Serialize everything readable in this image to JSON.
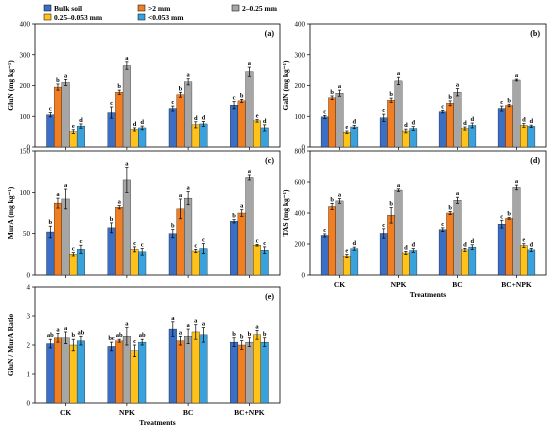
{
  "legend": {
    "items": [
      {
        "label": "Bulk soil",
        "color": "#3a6fc4"
      },
      {
        "label": ">2 mm",
        "color": "#f07f24"
      },
      {
        "label": "2–0.25 mm",
        "color": "#a6a6a6"
      },
      {
        "label": "0.25–0.053 mm",
        "color": "#ffc21a"
      },
      {
        "label": "<0.053 mm",
        "color": "#39a2dd"
      }
    ]
  },
  "chart_data": [
    {
      "panel": "(a)",
      "type": "bar",
      "ylabel": "GluN (mg kg⁻¹)",
      "ylim": [
        0,
        400
      ],
      "yticks": [
        0,
        100,
        200,
        300,
        400
      ],
      "categories": [
        "CK",
        "NPK",
        "BC",
        "BC+NPK"
      ],
      "xlabel": "",
      "series": [
        {
          "name": "Bulk soil",
          "values": [
            105,
            112,
            125,
            136
          ],
          "errors": [
            7,
            18,
            8,
            12
          ],
          "letters": [
            "c",
            "c",
            "c",
            "c"
          ]
        },
        {
          "name": ">2 mm",
          "values": [
            195,
            178,
            170,
            150
          ],
          "errors": [
            10,
            7,
            8,
            5
          ],
          "letters": [
            "b",
            "b",
            "b",
            "b"
          ]
        },
        {
          "name": "2–0.25 mm",
          "values": [
            210,
            265,
            212,
            245
          ],
          "errors": [
            10,
            12,
            10,
            15
          ],
          "letters": [
            "a",
            "a",
            "a",
            "a"
          ]
        },
        {
          "name": "0.25–0.053 mm",
          "values": [
            50,
            57,
            72,
            85
          ],
          "errors": [
            6,
            5,
            10,
            4
          ],
          "letters": [
            "e",
            "d",
            "d",
            "e"
          ]
        },
        {
          "name": "<0.053 mm",
          "values": [
            68,
            62,
            75,
            62
          ],
          "errors": [
            7,
            6,
            8,
            10
          ],
          "letters": [
            "d",
            "d",
            "d",
            "d"
          ]
        }
      ]
    },
    {
      "panel": "(b)",
      "type": "bar",
      "ylabel": "GalN (mg kg⁻¹)",
      "ylim": [
        0,
        400
      ],
      "yticks": [
        0,
        100,
        200,
        300,
        400
      ],
      "categories": [
        "CK",
        "NPK",
        "BC",
        "BC+NPK"
      ],
      "xlabel": "",
      "series": [
        {
          "name": "Bulk soil",
          "values": [
            98,
            95,
            115,
            125
          ],
          "errors": [
            5,
            12,
            4,
            8
          ],
          "letters": [
            "c",
            "c",
            "c",
            "c"
          ]
        },
        {
          "name": ">2 mm",
          "values": [
            160,
            152,
            142,
            135
          ],
          "errors": [
            6,
            7,
            8,
            4
          ],
          "letters": [
            "b",
            "b",
            "b",
            "b"
          ]
        },
        {
          "name": "2–0.25 mm",
          "values": [
            175,
            215,
            178,
            218
          ],
          "errors": [
            10,
            12,
            12,
            3
          ],
          "letters": [
            "a",
            "a",
            "a",
            "a"
          ]
        },
        {
          "name": "0.25–0.053 mm",
          "values": [
            48,
            52,
            60,
            70
          ],
          "errors": [
            4,
            6,
            5,
            6
          ],
          "letters": [
            "e",
            "d",
            "d",
            "d"
          ]
        },
        {
          "name": "<0.053 mm",
          "values": [
            65,
            60,
            70,
            67
          ],
          "errors": [
            5,
            6,
            8,
            4
          ],
          "letters": [
            "d",
            "d",
            "d",
            "d"
          ]
        }
      ]
    },
    {
      "panel": "(c)",
      "type": "bar",
      "ylabel": "MurA (mg kg⁻¹)",
      "ylim": [
        0,
        150
      ],
      "yticks": [
        0,
        50,
        100,
        150
      ],
      "categories": [
        "CK",
        "NPK",
        "BC",
        "BC+NPK"
      ],
      "xlabel": "",
      "series": [
        {
          "name": "Bulk soil",
          "values": [
            52,
            57,
            50,
            65
          ],
          "errors": [
            7,
            6,
            5,
            2
          ],
          "letters": [
            "b",
            "b",
            "b",
            "b"
          ]
        },
        {
          "name": ">2 mm",
          "values": [
            87,
            82,
            80,
            75
          ],
          "errors": [
            6,
            2,
            12,
            4
          ],
          "letters": [
            "a",
            "a",
            "a",
            "a"
          ]
        },
        {
          "name": "2–0.25 mm",
          "values": [
            92,
            115,
            93,
            118
          ],
          "errors": [
            12,
            15,
            8,
            3
          ],
          "letters": [
            "a",
            "a",
            "a",
            "a"
          ]
        },
        {
          "name": "0.25–0.053 mm",
          "values": [
            25,
            31,
            29,
            36
          ],
          "errors": [
            2,
            3,
            2,
            1
          ],
          "letters": [
            "c",
            "c",
            "c",
            "c"
          ]
        },
        {
          "name": "<0.053 mm",
          "values": [
            31,
            28,
            32,
            30
          ],
          "errors": [
            5,
            4,
            6,
            4
          ],
          "letters": [
            "c",
            "c",
            "c",
            "c"
          ]
        }
      ]
    },
    {
      "panel": "(d)",
      "type": "bar",
      "ylabel": "TAS (mg kg⁻¹)",
      "ylim": [
        0,
        800
      ],
      "yticks": [
        0,
        200,
        400,
        600,
        800
      ],
      "categories": [
        "CK",
        "NPK",
        "BC",
        "BC+NPK"
      ],
      "xlabel": "Treatments",
      "series": [
        {
          "name": "Bulk soil",
          "values": [
            255,
            268,
            292,
            328
          ],
          "errors": [
            10,
            30,
            12,
            25
          ],
          "letters": [
            "c",
            "c",
            "c",
            "c"
          ]
        },
        {
          "name": ">2 mm",
          "values": [
            442,
            385,
            400,
            365
          ],
          "errors": [
            20,
            50,
            10,
            5
          ],
          "letters": [
            "b",
            "b",
            "b",
            "b"
          ]
        },
        {
          "name": "2–0.25 mm",
          "values": [
            478,
            548,
            482,
            565
          ],
          "errors": [
            15,
            8,
            20,
            15
          ],
          "letters": [
            "a",
            "a",
            "a",
            "a"
          ]
        },
        {
          "name": "0.25–0.053 mm",
          "values": [
            122,
            142,
            162,
            190
          ],
          "errors": [
            10,
            10,
            10,
            12
          ],
          "letters": [
            "e",
            "d",
            "d",
            "e"
          ]
        },
        {
          "name": "<0.053 mm",
          "values": [
            170,
            158,
            180,
            162
          ],
          "errors": [
            10,
            12,
            15,
            10
          ],
          "letters": [
            "d",
            "d",
            "d",
            "d"
          ]
        }
      ]
    },
    {
      "panel": "(e)",
      "type": "bar",
      "ylabel": "GluN / MurA Ratio",
      "ylim": [
        0,
        4
      ],
      "yticks": [
        0,
        1,
        2,
        3,
        4
      ],
      "categories": [
        "CK",
        "NPK",
        "BC",
        "BC+NPK"
      ],
      "xlabel": "Treatments",
      "series": [
        {
          "name": "Bulk soil",
          "values": [
            2.05,
            1.95,
            2.55,
            2.1
          ],
          "errors": [
            0.15,
            0.15,
            0.25,
            0.15
          ],
          "letters": [
            "ab",
            "bc",
            "a",
            "b"
          ]
        },
        {
          "name": ">2 mm",
          "values": [
            2.25,
            2.15,
            2.15,
            2.0
          ],
          "errors": [
            0.15,
            0.05,
            0.15,
            0.15
          ],
          "letters": [
            "a",
            "ab",
            "a",
            "b"
          ]
        },
        {
          "name": "2–0.25 mm",
          "values": [
            2.25,
            2.3,
            2.3,
            2.1
          ],
          "errors": [
            0.2,
            0.3,
            0.25,
            0.15
          ],
          "letters": [
            "a",
            "a",
            "a",
            "b"
          ]
        },
        {
          "name": "0.25–0.053 mm",
          "values": [
            2.0,
            1.8,
            2.45,
            2.35
          ],
          "errors": [
            0.2,
            0.2,
            0.25,
            0.15
          ],
          "letters": [
            "b",
            "c",
            "a",
            "a"
          ]
        },
        {
          "name": "<0.053 mm",
          "values": [
            2.15,
            2.1,
            2.35,
            2.1
          ],
          "errors": [
            0.15,
            0.1,
            0.25,
            0.15
          ],
          "letters": [
            "ab",
            "ab",
            "a",
            "b"
          ]
        }
      ]
    }
  ]
}
